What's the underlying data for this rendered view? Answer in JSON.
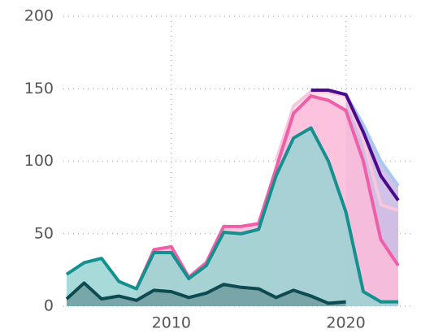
{
  "chart_data": {
    "type": "area",
    "x": [
      2004,
      2005,
      2006,
      2007,
      2008,
      2009,
      2010,
      2011,
      2012,
      2013,
      2014,
      2015,
      2016,
      2017,
      2018,
      2019,
      2020,
      2021,
      2022,
      2023
    ],
    "xlim": [
      2004,
      2023
    ],
    "xticks": [
      2010,
      2020
    ],
    "ylim": [
      0,
      200
    ],
    "yticks": [
      0,
      50,
      100,
      150,
      200
    ],
    "grid": true,
    "series": [
      {
        "color": "#f9c6dc",
        "fill": "#fde0ec",
        "values": [
          null,
          null,
          null,
          null,
          null,
          null,
          null,
          null,
          null,
          null,
          null,
          null,
          100,
          138,
          148,
          148,
          145,
          115,
          70,
          66
        ]
      },
      {
        "color": "#a9c8ef",
        "fill": "#c9b7e3",
        "values": [
          null,
          null,
          null,
          null,
          null,
          null,
          null,
          null,
          null,
          null,
          null,
          null,
          null,
          null,
          null,
          null,
          146,
          125,
          100,
          83
        ]
      },
      {
        "color": "#ee5fa7",
        "fill": "#fdbcd9",
        "values": [
          null,
          null,
          null,
          null,
          12,
          39,
          41,
          20,
          30,
          55,
          55,
          57,
          95,
          133,
          145,
          142,
          135,
          100,
          46,
          28
        ]
      },
      {
        "color": "#4b0a8c",
        "fill": null,
        "values": [
          null,
          null,
          null,
          null,
          null,
          null,
          null,
          null,
          null,
          null,
          null,
          null,
          null,
          null,
          149,
          149,
          146,
          120,
          90,
          73
        ]
      },
      {
        "color": "#14918f",
        "fill": "#98d3d2",
        "values": [
          22,
          30,
          33,
          17,
          12,
          37,
          37,
          19,
          28,
          51,
          50,
          53,
          90,
          116,
          123,
          100,
          65,
          10,
          3,
          3
        ]
      },
      {
        "color": "#0e4a52",
        "fill": "#6f9ea0",
        "values": [
          5,
          16,
          5,
          7,
          4,
          11,
          10,
          6,
          9,
          15,
          13,
          12,
          6,
          11,
          7,
          2,
          3,
          null,
          null,
          null
        ]
      }
    ]
  }
}
